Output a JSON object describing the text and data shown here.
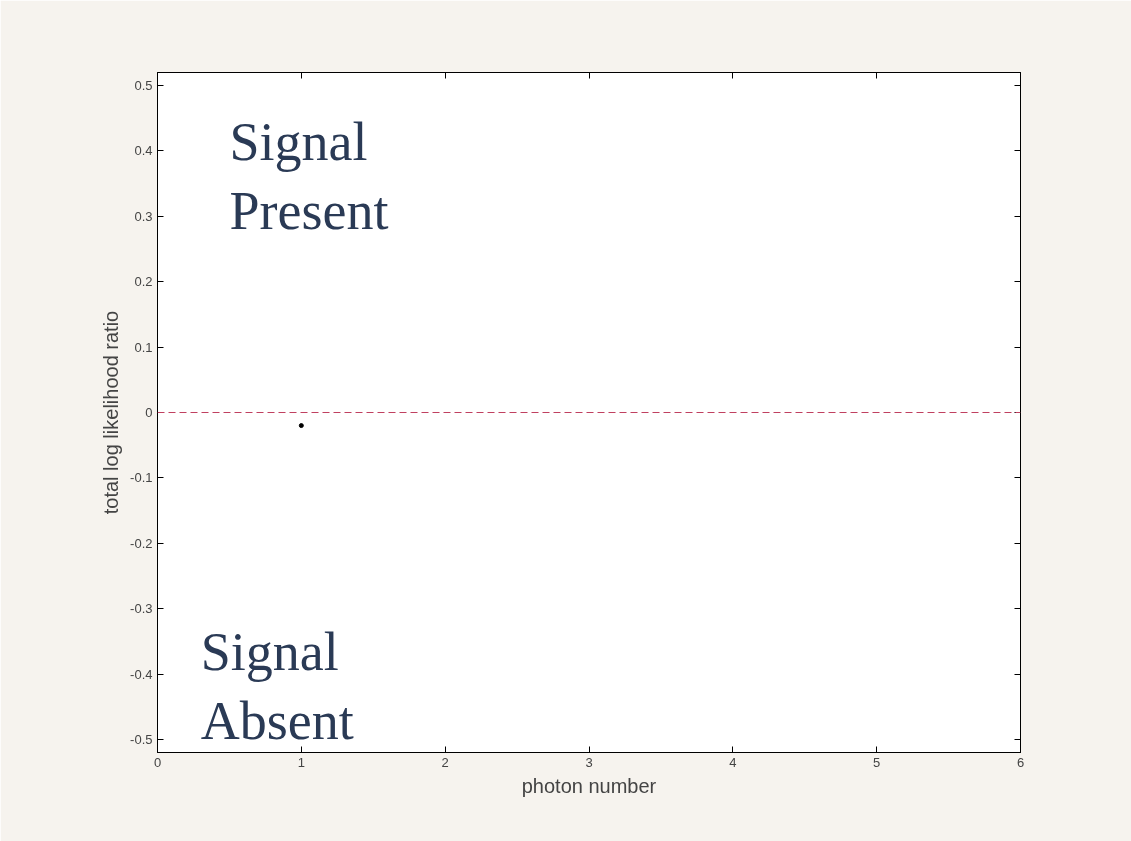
{
  "chart_data": {
    "type": "scatter",
    "xlabel": "photon number",
    "ylabel": "total log likelihood ratio",
    "x": [
      1
    ],
    "series": [
      {
        "color": "#000000",
        "values": [
          -0.02
        ]
      }
    ],
    "marker": "circle",
    "grid": false,
    "xlim": [
      0,
      6
    ],
    "xticks": [
      0,
      1,
      2,
      3,
      4,
      5,
      6
    ],
    "ylim": [
      -0.52,
      0.52
    ],
    "yticks": [
      -0.5,
      -0.4,
      -0.3,
      -0.2,
      -0.1,
      0,
      0.1,
      0.2,
      0.3,
      0.4,
      0.5
    ],
    "ref_lines": [
      {
        "axis": "y",
        "value": 0,
        "color": "#c04060",
        "line_style": "dashed"
      }
    ],
    "annotations": [
      "Signal\nPresent",
      "Signal\nAbsent"
    ]
  }
}
